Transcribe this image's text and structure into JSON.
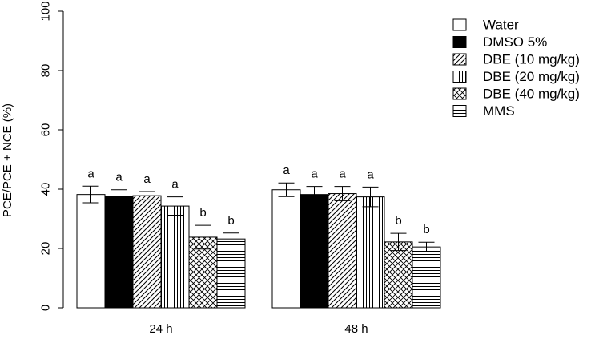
{
  "chart_data": {
    "type": "bar",
    "ylabel": "PCE/PCE + NCE (%)",
    "xlabel": "",
    "ylim": [
      0,
      100
    ],
    "yticks": [
      0,
      20,
      40,
      60,
      80,
      100
    ],
    "grid": false,
    "legend_position": "top-right",
    "categories": [
      "24 h",
      "48 h"
    ],
    "series": [
      {
        "name": "Water",
        "fill": "white",
        "values": [
          38.2,
          39.8
        ],
        "errors": [
          2.8,
          2.3
        ],
        "labels": [
          "a",
          "a"
        ]
      },
      {
        "name": "DMSO 5%",
        "fill": "black",
        "values": [
          37.6,
          38.2
        ],
        "errors": [
          2.2,
          2.7
        ],
        "labels": [
          "a",
          "a"
        ]
      },
      {
        "name": "DBE (10 mg/kg)",
        "fill": "diagonal",
        "values": [
          37.8,
          38.5
        ],
        "errors": [
          1.4,
          2.4
        ],
        "labels": [
          "a",
          "a"
        ]
      },
      {
        "name": "DBE (20 mg/kg)",
        "fill": "vertical",
        "values": [
          34.3,
          37.4
        ],
        "errors": [
          3.1,
          3.3
        ],
        "labels": [
          "a",
          "a"
        ]
      },
      {
        "name": "DBE (40 mg/kg)",
        "fill": "crosshatch",
        "values": [
          23.8,
          22.2
        ],
        "errors": [
          4.0,
          2.9
        ],
        "labels": [
          "b",
          "b"
        ]
      },
      {
        "name": "MMS",
        "fill": "horizontal",
        "values": [
          23.2,
          20.5
        ],
        "errors": [
          2.0,
          1.6
        ],
        "labels": [
          "b",
          "b"
        ]
      }
    ]
  }
}
